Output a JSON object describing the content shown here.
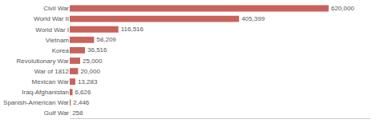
{
  "chart_data": {
    "type": "bar",
    "orientation": "horizontal",
    "categories": [
      "Civil War",
      "World War II",
      "World War I",
      "Vietnam",
      "Korea",
      "Revolutionary War",
      "War of 1812",
      "Mexican War",
      "Iraq-Afghanistan",
      "Spanish-American War",
      "Gulf War"
    ],
    "values": [
      620000,
      405399,
      116516,
      58209,
      36516,
      25000,
      20000,
      13283,
      6626,
      2446,
      258
    ],
    "value_labels": [
      "620,000",
      "405,399",
      "116,516",
      "58,209",
      "36,516",
      "25,000",
      "20,000",
      "13,283",
      "6,626",
      "2,446",
      "258"
    ],
    "color": "#c9635a",
    "xlim": [
      0,
      720000
    ],
    "data_labels": true,
    "tick_labels": "y",
    "grid": false
  }
}
